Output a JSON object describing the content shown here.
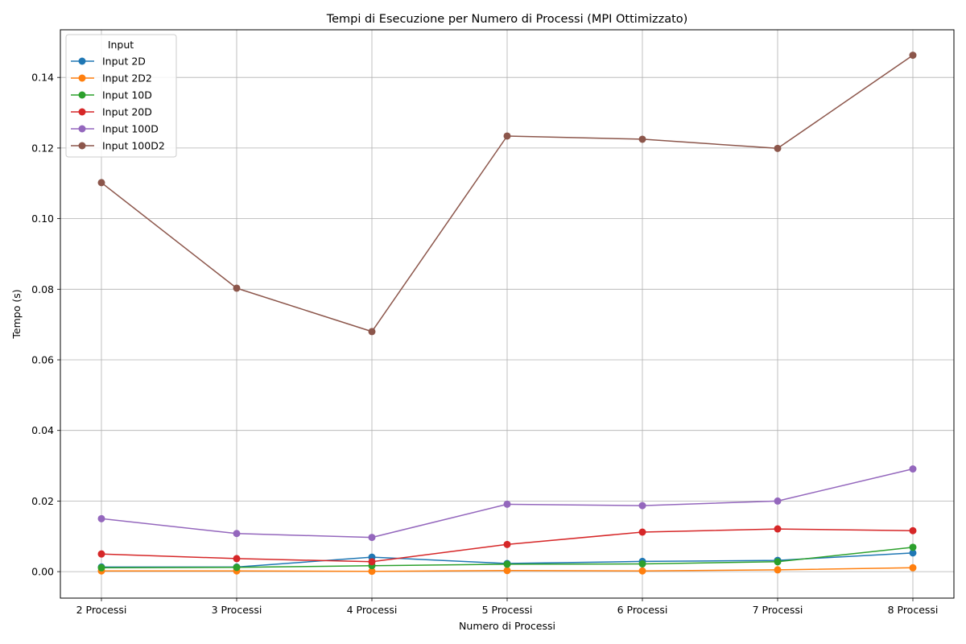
{
  "chart_data": {
    "type": "line",
    "title": "Tempi di Esecuzione per Numero di Processi (MPI Ottimizzato)",
    "xlabel": "Numero di Processi",
    "ylabel": "Tempo (s)",
    "categories": [
      "2 Processi",
      "3 Processi",
      "4 Processi",
      "5 Processi",
      "6 Processi",
      "7 Processi",
      "8 Processi"
    ],
    "ylim": [
      -0.0075,
      0.1535
    ],
    "yticks": [
      0.0,
      0.02,
      0.04,
      0.06,
      0.08,
      0.1,
      0.12,
      0.14
    ],
    "ytick_labels": [
      "0.00",
      "0.02",
      "0.04",
      "0.06",
      "0.08",
      "0.10",
      "0.12",
      "0.14"
    ],
    "grid": true,
    "legend": {
      "title": "Input",
      "position": "top-left"
    },
    "series": [
      {
        "name": "Input 2D",
        "color": "#1f77b4",
        "values": [
          0.0013,
          0.0013,
          0.0041,
          0.0023,
          0.0029,
          0.0032,
          0.0053
        ]
      },
      {
        "name": "Input 2D2",
        "color": "#ff7f0e",
        "values": [
          0.0002,
          0.0002,
          0.0001,
          0.0003,
          0.0002,
          0.0005,
          0.0011
        ]
      },
      {
        "name": "Input 10D",
        "color": "#2ca02c",
        "values": [
          0.0011,
          0.0012,
          0.0017,
          0.0021,
          0.0022,
          0.0028,
          0.0069
        ]
      },
      {
        "name": "Input 20D",
        "color": "#d62728",
        "values": [
          0.005,
          0.0037,
          0.0028,
          0.0077,
          0.0112,
          0.0121,
          0.0116
        ]
      },
      {
        "name": "Input 100D",
        "color": "#9467bd",
        "values": [
          0.015,
          0.0108,
          0.0097,
          0.0191,
          0.0187,
          0.02,
          0.0291
        ]
      },
      {
        "name": "Input 100D2",
        "color": "#8c564b",
        "values": [
          0.1102,
          0.0803,
          0.068,
          0.1234,
          0.1225,
          0.1199,
          0.1463
        ]
      }
    ]
  }
}
